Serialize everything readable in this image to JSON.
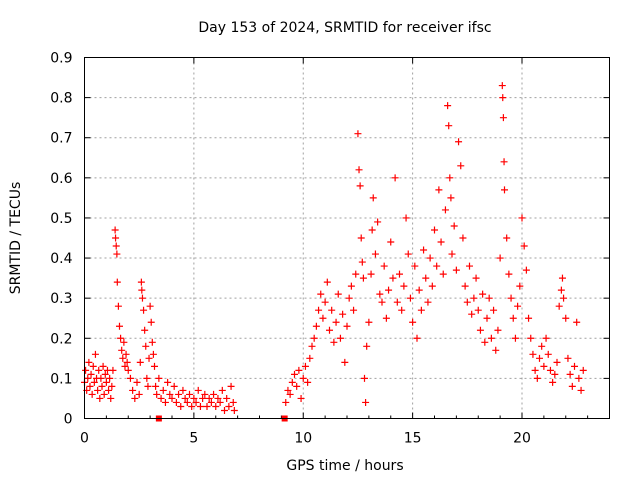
{
  "chart_data": {
    "type": "scatter",
    "title": "Day 153 of 2024, SRMTID for receiver ifsc",
    "xlabel": "GPS time / hours",
    "ylabel": "SRMTID / TECUs",
    "xlim": [
      0,
      24
    ],
    "ylim": [
      0,
      0.9
    ],
    "xticks": [
      0,
      5,
      10,
      15,
      20
    ],
    "xtick_labels": [
      "0",
      "5",
      "10",
      "15",
      "20"
    ],
    "yticks": [
      0,
      0.1,
      0.2,
      0.3,
      0.4,
      0.5,
      0.6,
      0.7,
      0.8,
      0.9
    ],
    "ytick_labels": [
      "0",
      "0.1",
      "0.2",
      "0.3",
      "0.4",
      "0.5",
      "0.6",
      "0.7",
      "0.8",
      "0.9"
    ],
    "grid": true,
    "series": [
      {
        "name": "SRMTID",
        "color": "#ff0000",
        "marker": "plus",
        "points": [
          [
            0.0,
            0.09
          ],
          [
            0.05,
            0.12
          ],
          [
            0.1,
            0.07
          ],
          [
            0.15,
            0.1
          ],
          [
            0.2,
            0.14
          ],
          [
            0.25,
            0.08
          ],
          [
            0.3,
            0.11
          ],
          [
            0.35,
            0.06
          ],
          [
            0.4,
            0.13
          ],
          [
            0.45,
            0.09
          ],
          [
            0.5,
            0.16
          ],
          [
            0.55,
            0.1
          ],
          [
            0.6,
            0.07
          ],
          [
            0.65,
            0.12
          ],
          [
            0.7,
            0.05
          ],
          [
            0.75,
            0.1
          ],
          [
            0.8,
            0.08
          ],
          [
            0.85,
            0.13
          ],
          [
            0.9,
            0.06
          ],
          [
            0.95,
            0.11
          ],
          [
            1.0,
            0.09
          ],
          [
            1.05,
            0.12
          ],
          [
            1.1,
            0.07
          ],
          [
            1.15,
            0.1
          ],
          [
            1.2,
            0.05
          ],
          [
            1.25,
            0.08
          ],
          [
            1.3,
            0.12
          ],
          [
            1.4,
            0.47
          ],
          [
            1.42,
            0.45
          ],
          [
            1.45,
            0.43
          ],
          [
            1.48,
            0.41
          ],
          [
            1.5,
            0.34
          ],
          [
            1.55,
            0.28
          ],
          [
            1.6,
            0.23
          ],
          [
            1.65,
            0.2
          ],
          [
            1.7,
            0.17
          ],
          [
            1.75,
            0.15
          ],
          [
            1.8,
            0.19
          ],
          [
            1.85,
            0.13
          ],
          [
            1.9,
            0.16
          ],
          [
            1.95,
            0.14
          ],
          [
            2.0,
            0.12
          ],
          [
            2.1,
            0.1
          ],
          [
            2.2,
            0.07
          ],
          [
            2.3,
            0.05
          ],
          [
            2.4,
            0.09
          ],
          [
            2.5,
            0.06
          ],
          [
            2.55,
            0.14
          ],
          [
            2.6,
            0.34
          ],
          [
            2.62,
            0.32
          ],
          [
            2.65,
            0.3
          ],
          [
            2.7,
            0.27
          ],
          [
            2.75,
            0.22
          ],
          [
            2.8,
            0.18
          ],
          [
            2.85,
            0.1
          ],
          [
            2.9,
            0.08
          ],
          [
            2.95,
            0.15
          ],
          [
            3.0,
            0.28
          ],
          [
            3.05,
            0.24
          ],
          [
            3.1,
            0.19
          ],
          [
            3.15,
            0.16
          ],
          [
            3.2,
            0.13
          ],
          [
            3.25,
            0.08
          ],
          [
            3.3,
            0.06
          ],
          [
            3.4,
            0.1
          ],
          [
            3.5,
            0.05
          ],
          [
            3.6,
            0.07
          ],
          [
            3.7,
            0.04
          ],
          [
            3.8,
            0.09
          ],
          [
            3.9,
            0.06
          ],
          [
            4.0,
            0.05
          ],
          [
            4.1,
            0.08
          ],
          [
            4.2,
            0.04
          ],
          [
            4.3,
            0.06
          ],
          [
            4.4,
            0.03
          ],
          [
            4.5,
            0.07
          ],
          [
            4.6,
            0.05
          ],
          [
            4.7,
            0.04
          ],
          [
            4.8,
            0.06
          ],
          [
            4.9,
            0.03
          ],
          [
            5.0,
            0.05
          ],
          [
            5.1,
            0.04
          ],
          [
            5.2,
            0.07
          ],
          [
            5.3,
            0.03
          ],
          [
            5.4,
            0.05
          ],
          [
            5.5,
            0.06
          ],
          [
            5.6,
            0.03
          ],
          [
            5.7,
            0.05
          ],
          [
            5.8,
            0.04
          ],
          [
            5.9,
            0.06
          ],
          [
            6.0,
            0.03
          ],
          [
            6.1,
            0.05
          ],
          [
            6.2,
            0.04
          ],
          [
            6.3,
            0.07
          ],
          [
            6.4,
            0.02
          ],
          [
            6.5,
            0.05
          ],
          [
            6.6,
            0.03
          ],
          [
            6.7,
            0.08
          ],
          [
            6.8,
            0.04
          ],
          [
            6.85,
            0.02
          ],
          [
            9.2,
            0.04
          ],
          [
            9.3,
            0.07
          ],
          [
            9.4,
            0.06
          ],
          [
            9.5,
            0.09
          ],
          [
            9.6,
            0.11
          ],
          [
            9.7,
            0.08
          ],
          [
            9.8,
            0.12
          ],
          [
            9.9,
            0.05
          ],
          [
            10.0,
            0.1
          ],
          [
            10.1,
            0.13
          ],
          [
            10.2,
            0.09
          ],
          [
            10.3,
            0.15
          ],
          [
            10.4,
            0.18
          ],
          [
            10.5,
            0.2
          ],
          [
            10.6,
            0.23
          ],
          [
            10.7,
            0.27
          ],
          [
            10.8,
            0.31
          ],
          [
            10.9,
            0.25
          ],
          [
            11.0,
            0.29
          ],
          [
            11.1,
            0.34
          ],
          [
            11.2,
            0.22
          ],
          [
            11.3,
            0.27
          ],
          [
            11.4,
            0.19
          ],
          [
            11.5,
            0.24
          ],
          [
            11.6,
            0.31
          ],
          [
            11.7,
            0.2
          ],
          [
            11.8,
            0.26
          ],
          [
            11.9,
            0.14
          ],
          [
            12.0,
            0.23
          ],
          [
            12.1,
            0.3
          ],
          [
            12.2,
            0.33
          ],
          [
            12.3,
            0.27
          ],
          [
            12.4,
            0.36
          ],
          [
            12.5,
            0.71
          ],
          [
            12.55,
            0.62
          ],
          [
            12.6,
            0.58
          ],
          [
            12.65,
            0.45
          ],
          [
            12.7,
            0.39
          ],
          [
            12.75,
            0.35
          ],
          [
            12.8,
            0.1
          ],
          [
            12.85,
            0.04
          ],
          [
            12.9,
            0.18
          ],
          [
            13.0,
            0.24
          ],
          [
            13.1,
            0.36
          ],
          [
            13.15,
            0.47
          ],
          [
            13.2,
            0.55
          ],
          [
            13.3,
            0.41
          ],
          [
            13.4,
            0.49
          ],
          [
            13.5,
            0.31
          ],
          [
            13.6,
            0.29
          ],
          [
            13.7,
            0.38
          ],
          [
            13.8,
            0.25
          ],
          [
            13.9,
            0.32
          ],
          [
            14.0,
            0.44
          ],
          [
            14.1,
            0.35
          ],
          [
            14.2,
            0.6
          ],
          [
            14.3,
            0.29
          ],
          [
            14.4,
            0.36
          ],
          [
            14.5,
            0.27
          ],
          [
            14.6,
            0.33
          ],
          [
            14.7,
            0.5
          ],
          [
            14.8,
            0.41
          ],
          [
            14.9,
            0.3
          ],
          [
            15.0,
            0.24
          ],
          [
            15.1,
            0.38
          ],
          [
            15.2,
            0.2
          ],
          [
            15.3,
            0.32
          ],
          [
            15.4,
            0.27
          ],
          [
            15.5,
            0.42
          ],
          [
            15.6,
            0.35
          ],
          [
            15.7,
            0.29
          ],
          [
            15.8,
            0.4
          ],
          [
            15.9,
            0.33
          ],
          [
            16.0,
            0.47
          ],
          [
            16.1,
            0.38
          ],
          [
            16.2,
            0.57
          ],
          [
            16.3,
            0.44
          ],
          [
            16.4,
            0.36
          ],
          [
            16.5,
            0.52
          ],
          [
            16.6,
            0.78
          ],
          [
            16.65,
            0.73
          ],
          [
            16.7,
            0.6
          ],
          [
            16.75,
            0.55
          ],
          [
            16.8,
            0.41
          ],
          [
            16.9,
            0.48
          ],
          [
            17.0,
            0.37
          ],
          [
            17.1,
            0.69
          ],
          [
            17.2,
            0.63
          ],
          [
            17.3,
            0.45
          ],
          [
            17.4,
            0.33
          ],
          [
            17.5,
            0.29
          ],
          [
            17.6,
            0.38
          ],
          [
            17.7,
            0.26
          ],
          [
            17.8,
            0.3
          ],
          [
            17.9,
            0.35
          ],
          [
            18.0,
            0.27
          ],
          [
            18.1,
            0.22
          ],
          [
            18.2,
            0.31
          ],
          [
            18.3,
            0.19
          ],
          [
            18.4,
            0.25
          ],
          [
            18.5,
            0.3
          ],
          [
            18.6,
            0.2
          ],
          [
            18.7,
            0.27
          ],
          [
            18.8,
            0.17
          ],
          [
            18.9,
            0.22
          ],
          [
            19.0,
            0.4
          ],
          [
            19.1,
            0.83
          ],
          [
            19.12,
            0.8
          ],
          [
            19.15,
            0.75
          ],
          [
            19.18,
            0.64
          ],
          [
            19.2,
            0.57
          ],
          [
            19.3,
            0.45
          ],
          [
            19.4,
            0.36
          ],
          [
            19.5,
            0.3
          ],
          [
            19.6,
            0.25
          ],
          [
            19.7,
            0.2
          ],
          [
            19.8,
            0.28
          ],
          [
            19.9,
            0.33
          ],
          [
            20.0,
            0.5
          ],
          [
            20.1,
            0.43
          ],
          [
            20.2,
            0.37
          ],
          [
            20.3,
            0.25
          ],
          [
            20.4,
            0.2
          ],
          [
            20.5,
            0.16
          ],
          [
            20.6,
            0.12
          ],
          [
            20.7,
            0.1
          ],
          [
            20.8,
            0.15
          ],
          [
            20.9,
            0.18
          ],
          [
            21.0,
            0.13
          ],
          [
            21.1,
            0.2
          ],
          [
            21.2,
            0.16
          ],
          [
            21.3,
            0.12
          ],
          [
            21.4,
            0.09
          ],
          [
            21.5,
            0.11
          ],
          [
            21.6,
            0.14
          ],
          [
            21.7,
            0.28
          ],
          [
            21.8,
            0.32
          ],
          [
            21.85,
            0.35
          ],
          [
            21.9,
            0.3
          ],
          [
            22.0,
            0.25
          ],
          [
            22.1,
            0.15
          ],
          [
            22.2,
            0.11
          ],
          [
            22.3,
            0.08
          ],
          [
            22.4,
            0.13
          ],
          [
            22.5,
            0.24
          ],
          [
            22.6,
            0.1
          ],
          [
            22.7,
            0.07
          ],
          [
            22.8,
            0.12
          ]
        ]
      }
    ],
    "square_markers": [
      [
        3.4,
        0.0
      ],
      [
        9.15,
        0.0
      ]
    ]
  }
}
